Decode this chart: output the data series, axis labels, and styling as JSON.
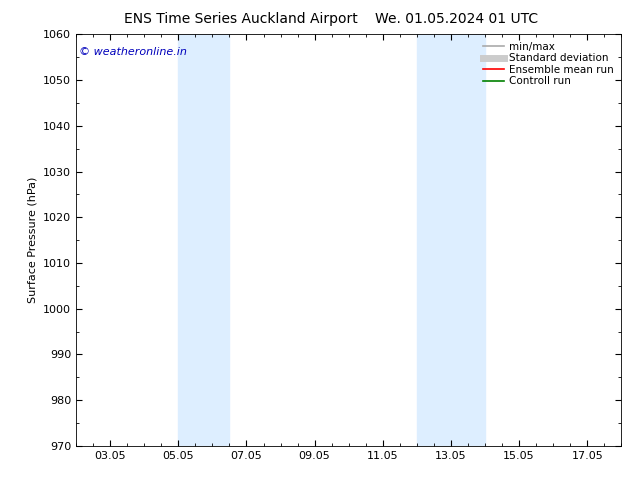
{
  "title_left": "ENS Time Series Auckland Airport",
  "title_right": "We. 01.05.2024 01 UTC",
  "ylabel": "Surface Pressure (hPa)",
  "ylim": [
    970,
    1060
  ],
  "yticks": [
    970,
    980,
    990,
    1000,
    1010,
    1020,
    1030,
    1040,
    1050,
    1060
  ],
  "xtick_labels": [
    "03.05",
    "05.05",
    "07.05",
    "09.05",
    "11.05",
    "13.05",
    "15.05",
    "17.05"
  ],
  "xtick_positions": [
    2,
    4,
    6,
    8,
    10,
    12,
    14,
    16
  ],
  "xlim": [
    1,
    17
  ],
  "shaded_bands": [
    {
      "xmin": 4.0,
      "xmax": 5.5,
      "color": "#ddeeff"
    },
    {
      "xmin": 11.0,
      "xmax": 13.0,
      "color": "#ddeeff"
    }
  ],
  "watermark_text": "© weatheronline.in",
  "watermark_color": "#0000bb",
  "watermark_fontsize": 8,
  "legend_entries": [
    {
      "label": "min/max",
      "color": "#aaaaaa",
      "lw": 1.2,
      "style": "solid"
    },
    {
      "label": "Standard deviation",
      "color": "#cccccc",
      "lw": 5,
      "style": "solid"
    },
    {
      "label": "Ensemble mean run",
      "color": "#ff0000",
      "lw": 1.2,
      "style": "solid"
    },
    {
      "label": "Controll run",
      "color": "#008000",
      "lw": 1.2,
      "style": "solid"
    }
  ],
  "bg_color": "#ffffff",
  "plot_bg_color": "#ffffff",
  "title_fontsize": 10,
  "axis_fontsize": 8,
  "tick_fontsize": 8,
  "legend_fontsize": 7.5
}
